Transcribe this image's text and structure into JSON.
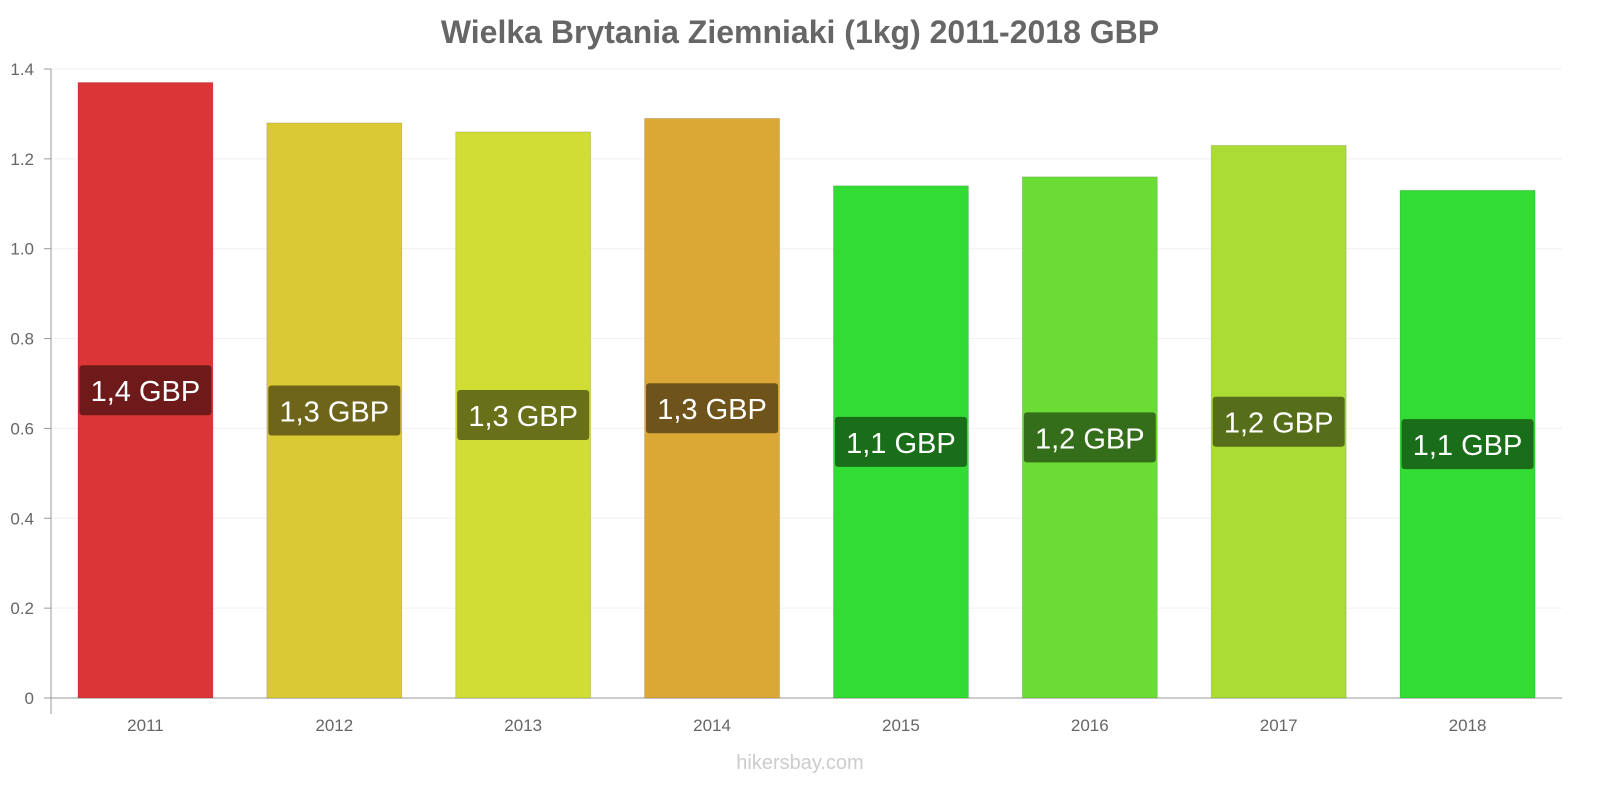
{
  "chart_data": {
    "type": "bar",
    "title": "Wielka Brytania Ziemniaki (1kg) 2011-2018 GBP",
    "xlabel": "",
    "ylabel": "",
    "categories": [
      "2011",
      "2012",
      "2013",
      "2014",
      "2015",
      "2016",
      "2017",
      "2018"
    ],
    "values": [
      1.37,
      1.28,
      1.26,
      1.29,
      1.14,
      1.16,
      1.23,
      1.13
    ],
    "data_labels": [
      "1,4 GBP",
      "1,3 GBP",
      "1,3 GBP",
      "1,3 GBP",
      "1,1 GBP",
      "1,2 GBP",
      "1,2 GBP",
      "1,1 GBP"
    ],
    "bar_colors": [
      "#dc3535",
      "#dbc934",
      "#d0dd35",
      "#dca835",
      "#33dc35",
      "#6adc35",
      "#abdc35",
      "#33dc35"
    ],
    "label_colors": [
      "#6e1a1a",
      "#6e641a",
      "#68701a",
      "#6e541a",
      "#1a6e1a",
      "#356e1a",
      "#566e1a",
      "#1a6e1a"
    ],
    "ylim": [
      0,
      1.4
    ],
    "yticks": [
      "0",
      "0.2",
      "0.4",
      "0.6",
      "0.8",
      "1.0",
      "1.2",
      "1.4"
    ],
    "grid": true,
    "legend": "none"
  },
  "footer": "hikersbay.com"
}
